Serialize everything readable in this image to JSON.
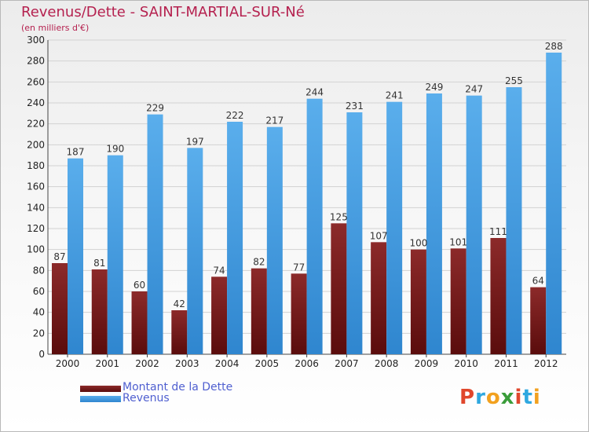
{
  "title": "Revenus/Dette - SAINT-MARTIAL-SUR-Né",
  "subtitle": "(en milliers d'€)",
  "logo_text": "Proxiti",
  "colors": {
    "title": "#b5214f",
    "debt": "#7a1a1a",
    "revenue": "#4aa3e6",
    "legend_text": "#4f5fd0"
  },
  "chart_data": {
    "type": "bar",
    "title": "Revenus/Dette - SAINT-MARTIAL-SUR-Né",
    "subtitle": "(en milliers d'€)",
    "categories": [
      "2000",
      "2001",
      "2002",
      "2003",
      "2004",
      "2005",
      "2006",
      "2007",
      "2008",
      "2009",
      "2010",
      "2011",
      "2012"
    ],
    "series": [
      {
        "name": "Montant de la Dette",
        "values": [
          87,
          81,
          60,
          42,
          74,
          82,
          77,
          125,
          107,
          100,
          101,
          111,
          64
        ]
      },
      {
        "name": "Revenus",
        "values": [
          187,
          190,
          229,
          197,
          222,
          217,
          244,
          231,
          241,
          249,
          247,
          255,
          288
        ]
      }
    ],
    "ylim": [
      0,
      300
    ],
    "yticks": [
      0,
      20,
      40,
      60,
      80,
      100,
      120,
      140,
      160,
      180,
      200,
      220,
      240,
      260,
      280,
      300
    ],
    "grid": true,
    "legend_position": "bottom-left"
  }
}
